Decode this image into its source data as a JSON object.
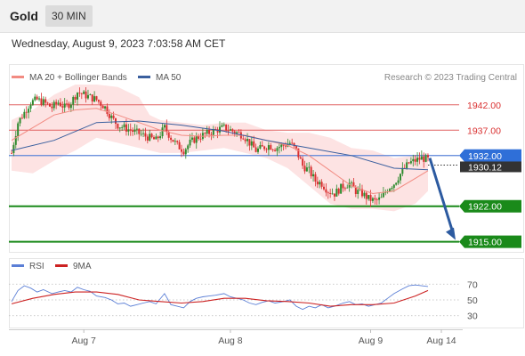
{
  "header": {
    "title": "Gold",
    "timeframe": "30 MIN"
  },
  "timestamp": "Wednesday, August 9, 2023 7:03:58 AM CET",
  "main_panel": {
    "legend": [
      {
        "label": "MA 20 + Bollinger Bands",
        "color": "#f28b82"
      },
      {
        "label": "MA 50",
        "color": "#3a5f9e"
      }
    ],
    "credit": "Research © 2023 Trading Central"
  },
  "rsi_panel": {
    "legend": [
      {
        "label": "RSI",
        "color": "#5b7fd6"
      },
      {
        "label": "9MA",
        "color": "#cc2222"
      }
    ]
  },
  "colors": {
    "up_candle": "#2e8b2e",
    "down_candle": "#d93030",
    "resistance_line": "#e06060",
    "support_line": "#1a8a1a",
    "pivot_line": "#5b85d9",
    "forecast_arrow": "#2c5aa0",
    "bollinger_fill": "#fde3e3"
  },
  "chart_data": [
    {
      "type": "candlestick",
      "y_range": [
        1913,
        1946
      ],
      "x_tick_labels": [
        "Aug 7",
        "Aug 8",
        "Aug 9",
        "Aug 14"
      ],
      "current_price": "1930.12",
      "levels": [
        {
          "value": 1942.0,
          "label": "1942.00",
          "role": "resistance"
        },
        {
          "value": 1937.0,
          "label": "1937.00",
          "role": "resistance"
        },
        {
          "value": 1932.0,
          "label": "1932.00",
          "role": "pivot"
        },
        {
          "value": 1922.0,
          "label": "1922.00",
          "role": "support"
        },
        {
          "value": 1915.0,
          "label": "1915.00",
          "role": "support"
        }
      ],
      "forecast": {
        "from": 1931.5,
        "to": 1915.0
      },
      "close_path": [
        [
          0,
          1932.5
        ],
        [
          3,
          1938.5
        ],
        [
          6,
          1940.5
        ],
        [
          9,
          1942.5
        ],
        [
          12,
          1943
        ],
        [
          15,
          1942.5
        ],
        [
          19,
          1941.5
        ],
        [
          22,
          1942.5
        ],
        [
          25,
          1941.5
        ],
        [
          28,
          1942.5
        ],
        [
          31,
          1944.5
        ],
        [
          34,
          1944
        ],
        [
          37,
          1943.5
        ],
        [
          40,
          1943
        ],
        [
          44,
          1941.5
        ],
        [
          47,
          1939.5
        ],
        [
          50,
          1938
        ],
        [
          53,
          1937.5
        ],
        [
          56,
          1937
        ],
        [
          59,
          1936.5
        ],
        [
          62,
          1936
        ],
        [
          65,
          1935.5
        ],
        [
          68,
          1935
        ],
        [
          72,
          1937.5
        ],
        [
          75,
          1935.5
        ],
        [
          78,
          1934
        ],
        [
          81,
          1933
        ],
        [
          84,
          1934.5
        ],
        [
          87,
          1935.5
        ],
        [
          90,
          1936
        ],
        [
          93,
          1936.5
        ],
        [
          96,
          1937
        ],
        [
          100,
          1937.5
        ],
        [
          103,
          1937
        ],
        [
          106,
          1936.5
        ],
        [
          109,
          1936
        ],
        [
          112,
          1934.5
        ],
        [
          115,
          1933
        ],
        [
          118,
          1933.5
        ],
        [
          121,
          1934
        ],
        [
          124,
          1933.5
        ],
        [
          128,
          1934
        ],
        [
          131,
          1934.5
        ],
        [
          134,
          1933
        ],
        [
          137,
          1930
        ],
        [
          140,
          1929
        ],
        [
          143,
          1927
        ],
        [
          146,
          1926.5
        ],
        [
          149,
          1925
        ],
        [
          152,
          1924.5
        ],
        [
          156,
          1926
        ],
        [
          159,
          1926.5
        ],
        [
          162,
          1925
        ],
        [
          165,
          1924.5
        ],
        [
          168,
          1923.5
        ],
        [
          171,
          1923
        ],
        [
          174,
          1923.5
        ],
        [
          177,
          1925.5
        ],
        [
          180,
          1926.5
        ],
        [
          184,
          1929
        ],
        [
          187,
          1930.5
        ],
        [
          190,
          1931
        ],
        [
          193,
          1931.5
        ],
        [
          196,
          1931.2
        ]
      ],
      "ma20": [
        [
          0,
          1935
        ],
        [
          10,
          1937.5
        ],
        [
          20,
          1940
        ],
        [
          30,
          1941
        ],
        [
          40,
          1941.3
        ],
        [
          50,
          1940
        ],
        [
          60,
          1938.5
        ],
        [
          70,
          1937
        ],
        [
          80,
          1936
        ],
        [
          90,
          1935.8
        ],
        [
          100,
          1936
        ],
        [
          110,
          1936
        ],
        [
          120,
          1935
        ],
        [
          130,
          1934
        ],
        [
          140,
          1932
        ],
        [
          150,
          1929
        ],
        [
          160,
          1926
        ],
        [
          170,
          1924.5
        ],
        [
          180,
          1925
        ],
        [
          190,
          1927.5
        ],
        [
          196,
          1929
        ]
      ],
      "ma50": [
        [
          0,
          1933
        ],
        [
          20,
          1935
        ],
        [
          40,
          1938.5
        ],
        [
          60,
          1938.8
        ],
        [
          80,
          1938
        ],
        [
          100,
          1936.8
        ],
        [
          120,
          1935
        ],
        [
          140,
          1933.5
        ],
        [
          160,
          1932
        ],
        [
          180,
          1929.5
        ],
        [
          196,
          1929.2
        ]
      ],
      "bb_upper": [
        [
          0,
          1939
        ],
        [
          10,
          1941
        ],
        [
          20,
          1944
        ],
        [
          30,
          1946
        ],
        [
          40,
          1946
        ],
        [
          50,
          1945.5
        ],
        [
          60,
          1943.5
        ],
        [
          65,
          1940
        ],
        [
          70,
          1939
        ],
        [
          80,
          1938.5
        ],
        [
          90,
          1938
        ],
        [
          100,
          1938.5
        ],
        [
          110,
          1938.5
        ],
        [
          120,
          1937
        ],
        [
          130,
          1936.5
        ],
        [
          140,
          1936.5
        ],
        [
          150,
          1935.5
        ],
        [
          160,
          1933.5
        ],
        [
          170,
          1933
        ],
        [
          180,
          1931.5
        ],
        [
          190,
          1932
        ],
        [
          196,
          1932.5
        ]
      ],
      "bb_lower": [
        [
          0,
          1929
        ],
        [
          10,
          1928.5
        ],
        [
          20,
          1931
        ],
        [
          30,
          1933
        ],
        [
          40,
          1935.5
        ],
        [
          50,
          1934.5
        ],
        [
          60,
          1933.5
        ],
        [
          70,
          1932.5
        ],
        [
          80,
          1932.5
        ],
        [
          90,
          1933
        ],
        [
          100,
          1933.5
        ],
        [
          110,
          1932.5
        ],
        [
          120,
          1931.5
        ],
        [
          130,
          1929.5
        ],
        [
          140,
          1926
        ],
        [
          150,
          1922.5
        ],
        [
          160,
          1921.5
        ],
        [
          170,
          1921.5
        ],
        [
          180,
          1921
        ],
        [
          190,
          1922.5
        ],
        [
          196,
          1925
        ]
      ]
    },
    {
      "type": "line",
      "name_ref": "rsi_panel",
      "y_range": [
        15,
        85
      ],
      "y_ticks": [
        30,
        50,
        70
      ],
      "rsi": [
        [
          0,
          48
        ],
        [
          3,
          62
        ],
        [
          6,
          68
        ],
        [
          9,
          65
        ],
        [
          12,
          60
        ],
        [
          15,
          63
        ],
        [
          19,
          58
        ],
        [
          22,
          60
        ],
        [
          25,
          62
        ],
        [
          28,
          60
        ],
        [
          31,
          66
        ],
        [
          34,
          63
        ],
        [
          37,
          61
        ],
        [
          40,
          55
        ],
        [
          44,
          53
        ],
        [
          47,
          50
        ],
        [
          50,
          45
        ],
        [
          53,
          46
        ],
        [
          56,
          42
        ],
        [
          59,
          44
        ],
        [
          62,
          46
        ],
        [
          65,
          48
        ],
        [
          68,
          45
        ],
        [
          72,
          58
        ],
        [
          75,
          44
        ],
        [
          78,
          42
        ],
        [
          81,
          40
        ],
        [
          84,
          48
        ],
        [
          87,
          52
        ],
        [
          90,
          54
        ],
        [
          93,
          55
        ],
        [
          96,
          56
        ],
        [
          100,
          58
        ],
        [
          103,
          54
        ],
        [
          106,
          52
        ],
        [
          109,
          50
        ],
        [
          112,
          46
        ],
        [
          115,
          44
        ],
        [
          118,
          47
        ],
        [
          121,
          49
        ],
        [
          124,
          46
        ],
        [
          128,
          48
        ],
        [
          131,
          50
        ],
        [
          134,
          42
        ],
        [
          137,
          38
        ],
        [
          140,
          42
        ],
        [
          143,
          40
        ],
        [
          146,
          44
        ],
        [
          149,
          40
        ],
        [
          152,
          42
        ],
        [
          156,
          46
        ],
        [
          159,
          48
        ],
        [
          162,
          44
        ],
        [
          165,
          45
        ],
        [
          168,
          42
        ],
        [
          171,
          44
        ],
        [
          174,
          46
        ],
        [
          177,
          52
        ],
        [
          180,
          58
        ],
        [
          184,
          64
        ],
        [
          187,
          68
        ],
        [
          190,
          69
        ],
        [
          193,
          68
        ],
        [
          196,
          67
        ]
      ],
      "rsi_ma": [
        [
          0,
          45
        ],
        [
          10,
          52
        ],
        [
          20,
          57
        ],
        [
          30,
          60
        ],
        [
          40,
          60
        ],
        [
          50,
          57
        ],
        [
          60,
          50
        ],
        [
          70,
          48
        ],
        [
          80,
          46
        ],
        [
          90,
          48
        ],
        [
          100,
          52
        ],
        [
          110,
          52
        ],
        [
          120,
          49
        ],
        [
          130,
          48
        ],
        [
          140,
          46
        ],
        [
          150,
          42
        ],
        [
          160,
          44
        ],
        [
          170,
          44
        ],
        [
          180,
          46
        ],
        [
          190,
          55
        ],
        [
          196,
          62
        ]
      ]
    }
  ]
}
